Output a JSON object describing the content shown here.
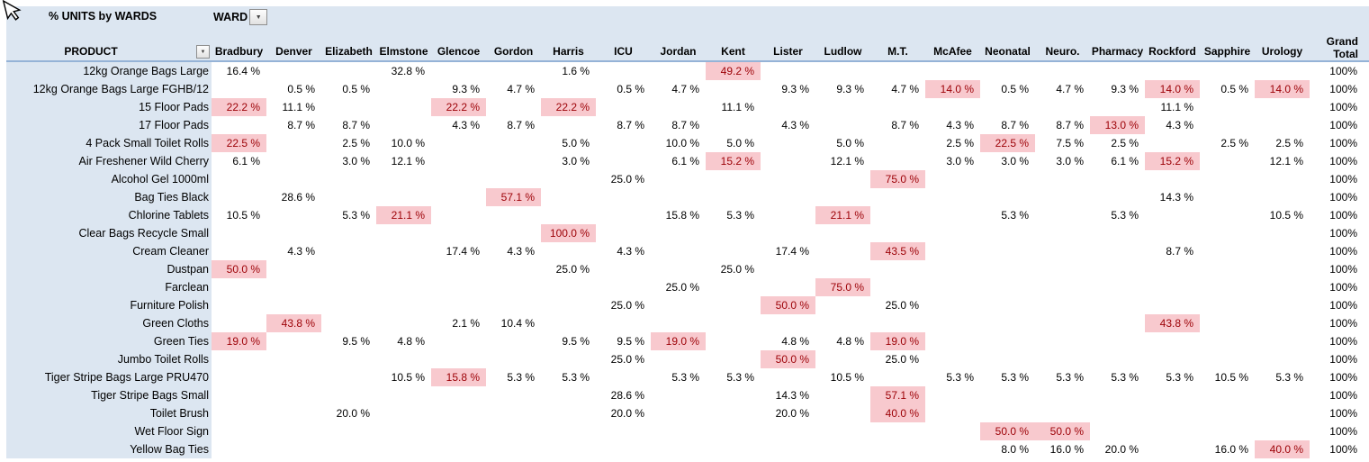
{
  "meta": {
    "title": "% UNITS by WARDS",
    "filter_label": "WARD",
    "product_header": "PRODUCT",
    "grand_total_header": "Grand Total",
    "colors": {
      "panel": "#DCE6F1",
      "header_rule": "#95B3D7",
      "highlight_bg": "#F8C9CE",
      "highlight_text": "#9C0006"
    },
    "icons": {
      "dropdown": "▼",
      "cursor": "mouse-pointer-arrow"
    }
  },
  "table": {
    "wards": [
      "Bradbury",
      "Denver",
      "Elizabeth",
      "Elmstone",
      "Glencoe",
      "Gordon",
      "Harris",
      "ICU",
      "Jordan",
      "Kent",
      "Lister",
      "Ludlow",
      "M.T.",
      "McAfee",
      "Neonatal",
      "Neuro.",
      "Pharmacy",
      "Rockford",
      "Sapphire",
      "Urology"
    ],
    "rows": [
      {
        "product": "12kg Orange Bags Large",
        "total": "100%",
        "cells": [
          {
            "c": 0,
            "v": "16.4 %",
            "h": false
          },
          {
            "c": 3,
            "v": "32.8 %",
            "h": false
          },
          {
            "c": 6,
            "v": "1.6 %",
            "h": false
          },
          {
            "c": 9,
            "v": "49.2 %",
            "h": true
          }
        ]
      },
      {
        "product": "12kg Orange Bags Large FGHB/12",
        "total": "100%",
        "cells": [
          {
            "c": 1,
            "v": "0.5 %",
            "h": false
          },
          {
            "c": 2,
            "v": "0.5 %",
            "h": false
          },
          {
            "c": 4,
            "v": "9.3 %",
            "h": false
          },
          {
            "c": 5,
            "v": "4.7 %",
            "h": false
          },
          {
            "c": 7,
            "v": "0.5 %",
            "h": false
          },
          {
            "c": 8,
            "v": "4.7 %",
            "h": false
          },
          {
            "c": 10,
            "v": "9.3 %",
            "h": false
          },
          {
            "c": 11,
            "v": "9.3 %",
            "h": false
          },
          {
            "c": 12,
            "v": "4.7 %",
            "h": false
          },
          {
            "c": 13,
            "v": "14.0 %",
            "h": true
          },
          {
            "c": 14,
            "v": "0.5 %",
            "h": false
          },
          {
            "c": 15,
            "v": "4.7 %",
            "h": false
          },
          {
            "c": 16,
            "v": "9.3 %",
            "h": false
          },
          {
            "c": 17,
            "v": "14.0 %",
            "h": true
          },
          {
            "c": 18,
            "v": "0.5 %",
            "h": false
          },
          {
            "c": 19,
            "v": "14.0 %",
            "h": true
          }
        ]
      },
      {
        "product": "15 Floor Pads",
        "total": "100%",
        "cells": [
          {
            "c": 0,
            "v": "22.2 %",
            "h": true
          },
          {
            "c": 1,
            "v": "11.1 %",
            "h": false
          },
          {
            "c": 4,
            "v": "22.2 %",
            "h": true
          },
          {
            "c": 6,
            "v": "22.2 %",
            "h": true
          },
          {
            "c": 9,
            "v": "11.1 %",
            "h": false
          },
          {
            "c": 17,
            "v": "11.1 %",
            "h": false
          }
        ]
      },
      {
        "product": "17 Floor Pads",
        "total": "100%",
        "cells": [
          {
            "c": 1,
            "v": "8.7 %",
            "h": false
          },
          {
            "c": 2,
            "v": "8.7 %",
            "h": false
          },
          {
            "c": 4,
            "v": "4.3 %",
            "h": false
          },
          {
            "c": 5,
            "v": "8.7 %",
            "h": false
          },
          {
            "c": 7,
            "v": "8.7 %",
            "h": false
          },
          {
            "c": 8,
            "v": "8.7 %",
            "h": false
          },
          {
            "c": 10,
            "v": "4.3 %",
            "h": false
          },
          {
            "c": 12,
            "v": "8.7 %",
            "h": false
          },
          {
            "c": 13,
            "v": "4.3 %",
            "h": false
          },
          {
            "c": 14,
            "v": "8.7 %",
            "h": false
          },
          {
            "c": 15,
            "v": "8.7 %",
            "h": false
          },
          {
            "c": 16,
            "v": "13.0 %",
            "h": true
          },
          {
            "c": 17,
            "v": "4.3 %",
            "h": false
          }
        ]
      },
      {
        "product": "4 Pack Small Toilet Rolls",
        "total": "100%",
        "cells": [
          {
            "c": 0,
            "v": "22.5 %",
            "h": true
          },
          {
            "c": 2,
            "v": "2.5 %",
            "h": false
          },
          {
            "c": 3,
            "v": "10.0 %",
            "h": false
          },
          {
            "c": 6,
            "v": "5.0 %",
            "h": false
          },
          {
            "c": 8,
            "v": "10.0 %",
            "h": false
          },
          {
            "c": 9,
            "v": "5.0 %",
            "h": false
          },
          {
            "c": 11,
            "v": "5.0 %",
            "h": false
          },
          {
            "c": 13,
            "v": "2.5 %",
            "h": false
          },
          {
            "c": 14,
            "v": "22.5 %",
            "h": true
          },
          {
            "c": 15,
            "v": "7.5 %",
            "h": false
          },
          {
            "c": 16,
            "v": "2.5 %",
            "h": false
          },
          {
            "c": 18,
            "v": "2.5 %",
            "h": false
          },
          {
            "c": 19,
            "v": "2.5 %",
            "h": false
          }
        ]
      },
      {
        "product": "Air Freshener Wild Cherry",
        "total": "100%",
        "cells": [
          {
            "c": 0,
            "v": "6.1 %",
            "h": false
          },
          {
            "c": 2,
            "v": "3.0 %",
            "h": false
          },
          {
            "c": 3,
            "v": "12.1 %",
            "h": false
          },
          {
            "c": 6,
            "v": "3.0 %",
            "h": false
          },
          {
            "c": 8,
            "v": "6.1 %",
            "h": false
          },
          {
            "c": 9,
            "v": "15.2 %",
            "h": true
          },
          {
            "c": 11,
            "v": "12.1 %",
            "h": false
          },
          {
            "c": 13,
            "v": "3.0 %",
            "h": false
          },
          {
            "c": 14,
            "v": "3.0 %",
            "h": false
          },
          {
            "c": 15,
            "v": "3.0 %",
            "h": false
          },
          {
            "c": 16,
            "v": "6.1 %",
            "h": false
          },
          {
            "c": 17,
            "v": "15.2 %",
            "h": true
          },
          {
            "c": 19,
            "v": "12.1 %",
            "h": false
          }
        ]
      },
      {
        "product": "Alcohol Gel 1000ml",
        "total": "100%",
        "cells": [
          {
            "c": 7,
            "v": "25.0 %",
            "h": false
          },
          {
            "c": 12,
            "v": "75.0 %",
            "h": true
          }
        ]
      },
      {
        "product": "Bag Ties Black",
        "total": "100%",
        "cells": [
          {
            "c": 1,
            "v": "28.6 %",
            "h": false
          },
          {
            "c": 5,
            "v": "57.1 %",
            "h": true
          },
          {
            "c": 17,
            "v": "14.3 %",
            "h": false
          }
        ]
      },
      {
        "product": "Chlorine Tablets",
        "total": "100%",
        "cells": [
          {
            "c": 0,
            "v": "10.5 %",
            "h": false
          },
          {
            "c": 2,
            "v": "5.3 %",
            "h": false
          },
          {
            "c": 3,
            "v": "21.1 %",
            "h": true
          },
          {
            "c": 8,
            "v": "15.8 %",
            "h": false
          },
          {
            "c": 9,
            "v": "5.3 %",
            "h": false
          },
          {
            "c": 11,
            "v": "21.1 %",
            "h": true
          },
          {
            "c": 14,
            "v": "5.3 %",
            "h": false
          },
          {
            "c": 16,
            "v": "5.3 %",
            "h": false
          },
          {
            "c": 19,
            "v": "10.5 %",
            "h": false
          }
        ]
      },
      {
        "product": "Clear Bags Recycle Small",
        "total": "100%",
        "cells": [
          {
            "c": 6,
            "v": "100.0 %",
            "h": true
          }
        ]
      },
      {
        "product": "Cream Cleaner",
        "total": "100%",
        "cells": [
          {
            "c": 1,
            "v": "4.3 %",
            "h": false
          },
          {
            "c": 4,
            "v": "17.4 %",
            "h": false
          },
          {
            "c": 5,
            "v": "4.3 %",
            "h": false
          },
          {
            "c": 7,
            "v": "4.3 %",
            "h": false
          },
          {
            "c": 10,
            "v": "17.4 %",
            "h": false
          },
          {
            "c": 12,
            "v": "43.5 %",
            "h": true
          },
          {
            "c": 17,
            "v": "8.7 %",
            "h": false
          }
        ]
      },
      {
        "product": "Dustpan",
        "total": "100%",
        "cells": [
          {
            "c": 0,
            "v": "50.0 %",
            "h": true
          },
          {
            "c": 6,
            "v": "25.0 %",
            "h": false
          },
          {
            "c": 9,
            "v": "25.0 %",
            "h": false
          }
        ]
      },
      {
        "product": "Farclean",
        "total": "100%",
        "cells": [
          {
            "c": 8,
            "v": "25.0 %",
            "h": false
          },
          {
            "c": 11,
            "v": "75.0 %",
            "h": true
          }
        ]
      },
      {
        "product": "Furniture Polish",
        "total": "100%",
        "cells": [
          {
            "c": 7,
            "v": "25.0 %",
            "h": false
          },
          {
            "c": 10,
            "v": "50.0 %",
            "h": true
          },
          {
            "c": 12,
            "v": "25.0 %",
            "h": false
          }
        ]
      },
      {
        "product": "Green Cloths",
        "total": "100%",
        "cells": [
          {
            "c": 1,
            "v": "43.8 %",
            "h": true
          },
          {
            "c": 4,
            "v": "2.1 %",
            "h": false
          },
          {
            "c": 5,
            "v": "10.4 %",
            "h": false
          },
          {
            "c": 17,
            "v": "43.8 %",
            "h": true
          }
        ]
      },
      {
        "product": "Green Ties",
        "total": "100%",
        "cells": [
          {
            "c": 0,
            "v": "19.0 %",
            "h": true
          },
          {
            "c": 2,
            "v": "9.5 %",
            "h": false
          },
          {
            "c": 3,
            "v": "4.8 %",
            "h": false
          },
          {
            "c": 6,
            "v": "9.5 %",
            "h": false
          },
          {
            "c": 7,
            "v": "9.5 %",
            "h": false
          },
          {
            "c": 8,
            "v": "19.0 %",
            "h": true
          },
          {
            "c": 10,
            "v": "4.8 %",
            "h": false
          },
          {
            "c": 11,
            "v": "4.8 %",
            "h": false
          },
          {
            "c": 12,
            "v": "19.0 %",
            "h": true
          }
        ]
      },
      {
        "product": "Jumbo Toilet Rolls",
        "total": "100%",
        "cells": [
          {
            "c": 7,
            "v": "25.0 %",
            "h": false
          },
          {
            "c": 10,
            "v": "50.0 %",
            "h": true
          },
          {
            "c": 12,
            "v": "25.0 %",
            "h": false
          }
        ]
      },
      {
        "product": "Tiger Stripe Bags Large PRU470",
        "total": "100%",
        "cells": [
          {
            "c": 3,
            "v": "10.5 %",
            "h": false
          },
          {
            "c": 4,
            "v": "15.8 %",
            "h": true
          },
          {
            "c": 5,
            "v": "5.3 %",
            "h": false
          },
          {
            "c": 6,
            "v": "5.3 %",
            "h": false
          },
          {
            "c": 8,
            "v": "5.3 %",
            "h": false
          },
          {
            "c": 9,
            "v": "5.3 %",
            "h": false
          },
          {
            "c": 11,
            "v": "10.5 %",
            "h": false
          },
          {
            "c": 13,
            "v": "5.3 %",
            "h": false
          },
          {
            "c": 14,
            "v": "5.3 %",
            "h": false
          },
          {
            "c": 15,
            "v": "5.3 %",
            "h": false
          },
          {
            "c": 16,
            "v": "5.3 %",
            "h": false
          },
          {
            "c": 17,
            "v": "5.3 %",
            "h": false
          },
          {
            "c": 18,
            "v": "10.5 %",
            "h": false
          },
          {
            "c": 19,
            "v": "5.3 %",
            "h": false
          }
        ]
      },
      {
        "product": "Tiger Stripe Bags Small",
        "total": "100%",
        "cells": [
          {
            "c": 7,
            "v": "28.6 %",
            "h": false
          },
          {
            "c": 10,
            "v": "14.3 %",
            "h": false
          },
          {
            "c": 12,
            "v": "57.1 %",
            "h": true
          }
        ]
      },
      {
        "product": "Toilet Brush",
        "total": "100%",
        "cells": [
          {
            "c": 2,
            "v": "20.0 %",
            "h": false
          },
          {
            "c": 7,
            "v": "20.0 %",
            "h": false
          },
          {
            "c": 10,
            "v": "20.0 %",
            "h": false
          },
          {
            "c": 12,
            "v": "40.0 %",
            "h": true
          }
        ]
      },
      {
        "product": "Wet Floor Sign",
        "total": "100%",
        "cells": [
          {
            "c": 14,
            "v": "50.0 %",
            "h": true
          },
          {
            "c": 15,
            "v": "50.0 %",
            "h": true
          }
        ]
      },
      {
        "product": "Yellow Bag Ties",
        "total": "100%",
        "cells": [
          {
            "c": 14,
            "v": "8.0 %",
            "h": false
          },
          {
            "c": 15,
            "v": "16.0 %",
            "h": false
          },
          {
            "c": 16,
            "v": "20.0 %",
            "h": false
          },
          {
            "c": 18,
            "v": "16.0 %",
            "h": false
          },
          {
            "c": 19,
            "v": "40.0 %",
            "h": true
          }
        ]
      }
    ]
  }
}
